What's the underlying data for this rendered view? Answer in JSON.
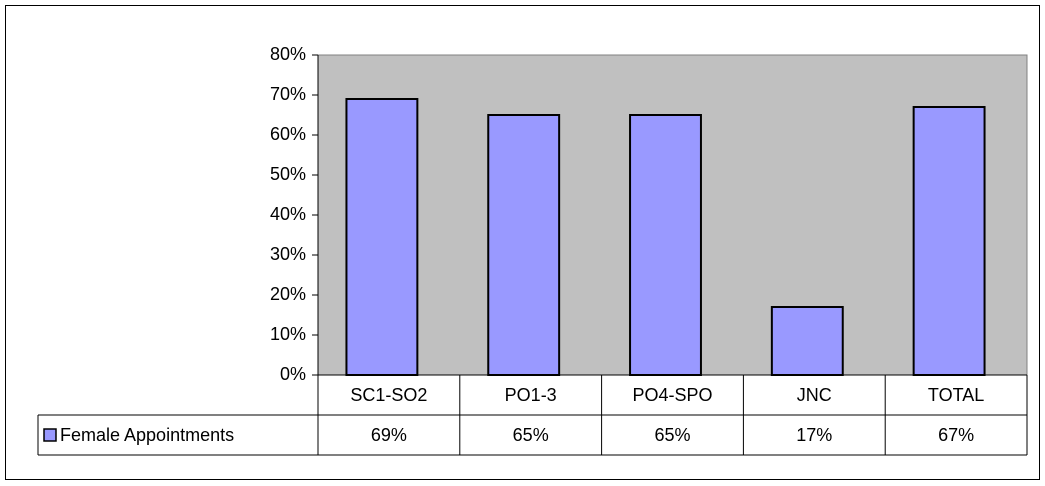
{
  "chart_data": {
    "type": "bar",
    "categories": [
      "SC1-SO2",
      "PO1-3",
      "PO4-SPO",
      "JNC",
      "TOTAL"
    ],
    "series": [
      {
        "name": "Female Appointments",
        "color": "#9999ff",
        "values": [
          69,
          65,
          65,
          17,
          67
        ],
        "value_labels": [
          "69%",
          "65%",
          "65%",
          "17%",
          "67%"
        ]
      }
    ],
    "ylim": [
      0,
      80
    ],
    "yticks": [
      {
        "value": 0,
        "label": "0%"
      },
      {
        "value": 10,
        "label": "10%"
      },
      {
        "value": 20,
        "label": "20%"
      },
      {
        "value": 30,
        "label": "30%"
      },
      {
        "value": 40,
        "label": "40%"
      },
      {
        "value": 50,
        "label": "50%"
      },
      {
        "value": 60,
        "label": "60%"
      },
      {
        "value": 70,
        "label": "70%"
      },
      {
        "value": 80,
        "label": "80%"
      }
    ],
    "data_table": true
  }
}
